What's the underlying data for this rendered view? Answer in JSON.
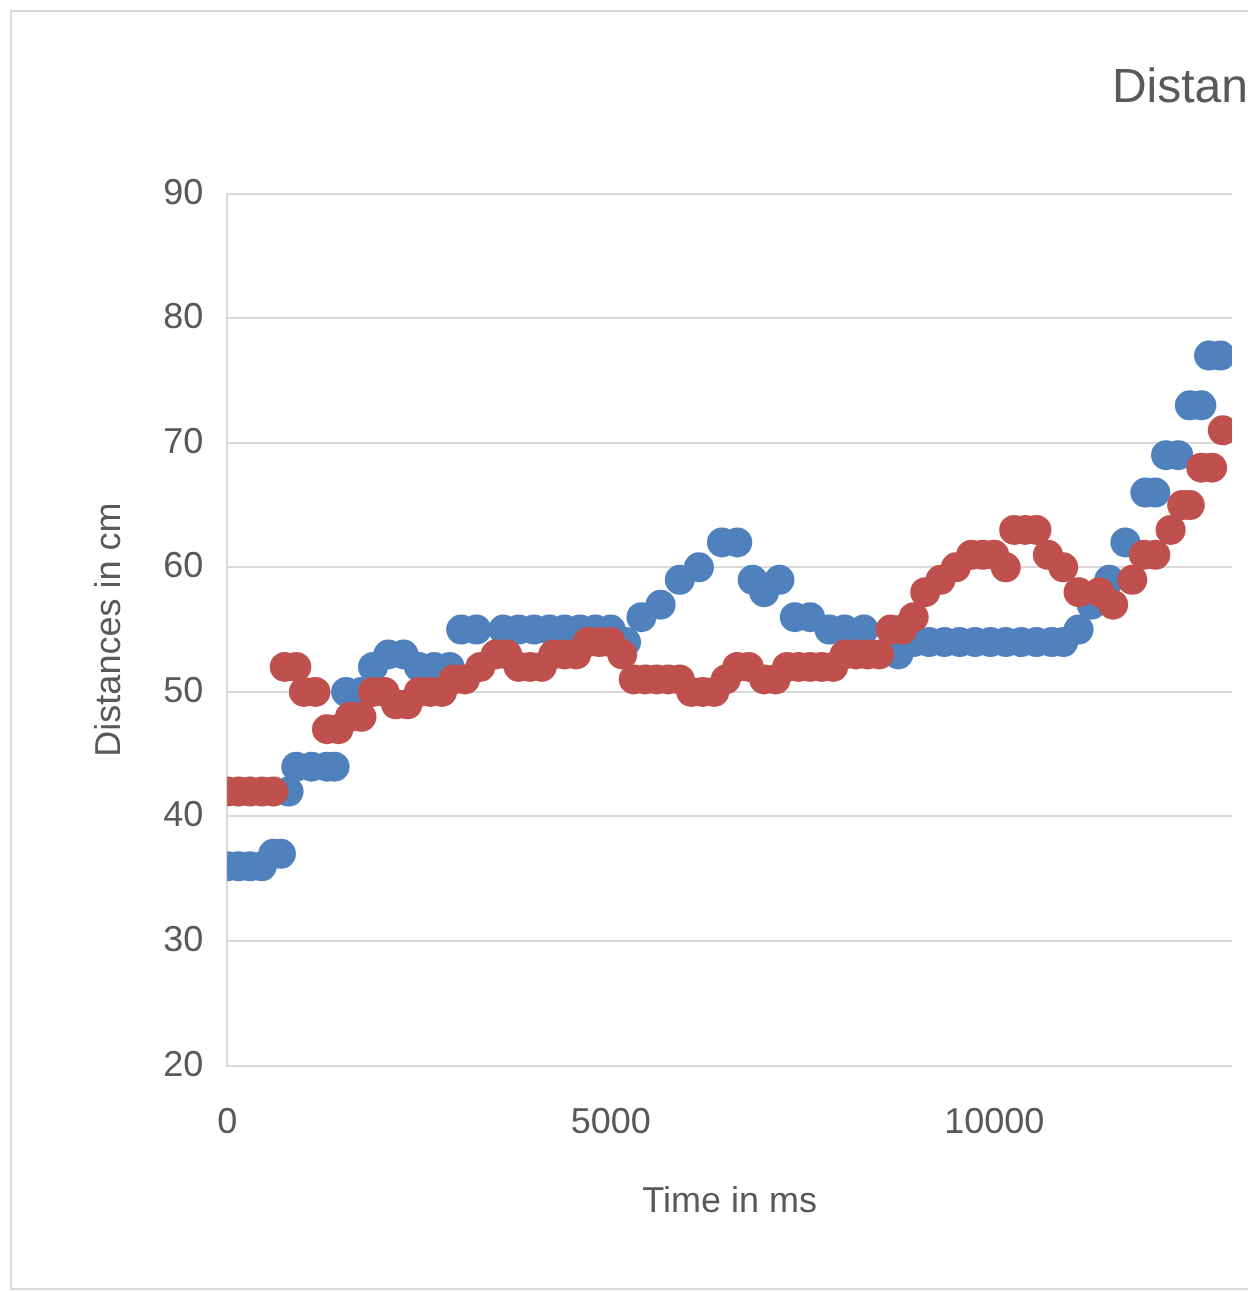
{
  "chart_data": {
    "type": "scatter",
    "title": "Distan",
    "xlabel": "Time in ms",
    "ylabel": "Distances in cm",
    "xlim": [
      0,
      13100
    ],
    "xticks": [
      0,
      5000,
      10000
    ],
    "ylim": [
      20,
      90
    ],
    "yticks": [
      20,
      30,
      40,
      50,
      60,
      70,
      80,
      90
    ],
    "grid": "y",
    "legend": false,
    "marker": "circle",
    "series": [
      {
        "color": "#4f81bd",
        "x": [
          0,
          150,
          300,
          450,
          600,
          700,
          800,
          900,
          1100,
          1300,
          1400,
          1550,
          1750,
          1900,
          2100,
          2300,
          2500,
          2700,
          2900,
          3050,
          3250,
          3600,
          3800,
          4000,
          4200,
          4400,
          4600,
          4800,
          5000,
          5200,
          5400,
          5650,
          5900,
          6150,
          6450,
          6650,
          6850,
          7000,
          7200,
          7400,
          7600,
          7850,
          8050,
          8300,
          8750,
          8950,
          9150,
          9350,
          9550,
          9750,
          9950,
          10150,
          10350,
          10550,
          10750,
          10900,
          11100,
          11270,
          11500,
          11710,
          11970,
          12100,
          12240,
          12400,
          12550,
          12700,
          12800,
          12950
        ],
        "values": [
          36,
          36,
          36,
          36,
          37,
          37,
          42,
          44,
          44,
          44,
          44,
          50,
          50,
          52,
          53,
          53,
          52,
          52,
          52,
          55,
          55,
          55,
          55,
          55,
          55,
          55,
          55,
          55,
          55,
          54,
          56,
          57,
          59,
          60,
          62,
          62,
          59,
          58,
          59,
          56,
          56,
          55,
          55,
          55,
          53,
          54,
          54,
          54,
          54,
          54,
          54,
          54,
          54,
          54,
          54,
          54,
          55,
          57,
          59,
          62,
          66,
          66,
          69,
          69,
          73,
          73,
          77,
          77
        ]
      },
      {
        "color": "#c0504d",
        "x": [
          0,
          150,
          300,
          450,
          600,
          750,
          900,
          1000,
          1150,
          1300,
          1450,
          1600,
          1750,
          1900,
          2050,
          2200,
          2350,
          2500,
          2650,
          2800,
          2950,
          3100,
          3300,
          3500,
          3650,
          3800,
          3950,
          4100,
          4250,
          4400,
          4550,
          4700,
          4850,
          5000,
          5150,
          5300,
          5450,
          5600,
          5750,
          5900,
          6050,
          6200,
          6350,
          6500,
          6650,
          6800,
          7000,
          7150,
          7300,
          7450,
          7600,
          7750,
          7900,
          8050,
          8200,
          8350,
          8500,
          8650,
          8800,
          8950,
          9100,
          9300,
          9500,
          9700,
          9850,
          10000,
          10150,
          10260,
          10400,
          10550,
          10700,
          10900,
          11100,
          11370,
          11550,
          11800,
          11950,
          12100,
          12300,
          12450,
          12550,
          12700,
          12840,
          12980
        ],
        "values": [
          42,
          42,
          42,
          42,
          42,
          52,
          52,
          50,
          50,
          47,
          47,
          48,
          48,
          50,
          50,
          49,
          49,
          50,
          50,
          50,
          51,
          51,
          52,
          53,
          53,
          52,
          52,
          52,
          53,
          53,
          53,
          54,
          54,
          54,
          53,
          51,
          51,
          51,
          51,
          51,
          50,
          50,
          50,
          51,
          52,
          52,
          51,
          51,
          52,
          52,
          52,
          52,
          52,
          53,
          53,
          53,
          53,
          55,
          55,
          56,
          58,
          59,
          60,
          61,
          61,
          61,
          60,
          63,
          63,
          63,
          61,
          60,
          58,
          58,
          57,
          59,
          61,
          61,
          63,
          65,
          65,
          68,
          68,
          71
        ]
      }
    ]
  }
}
